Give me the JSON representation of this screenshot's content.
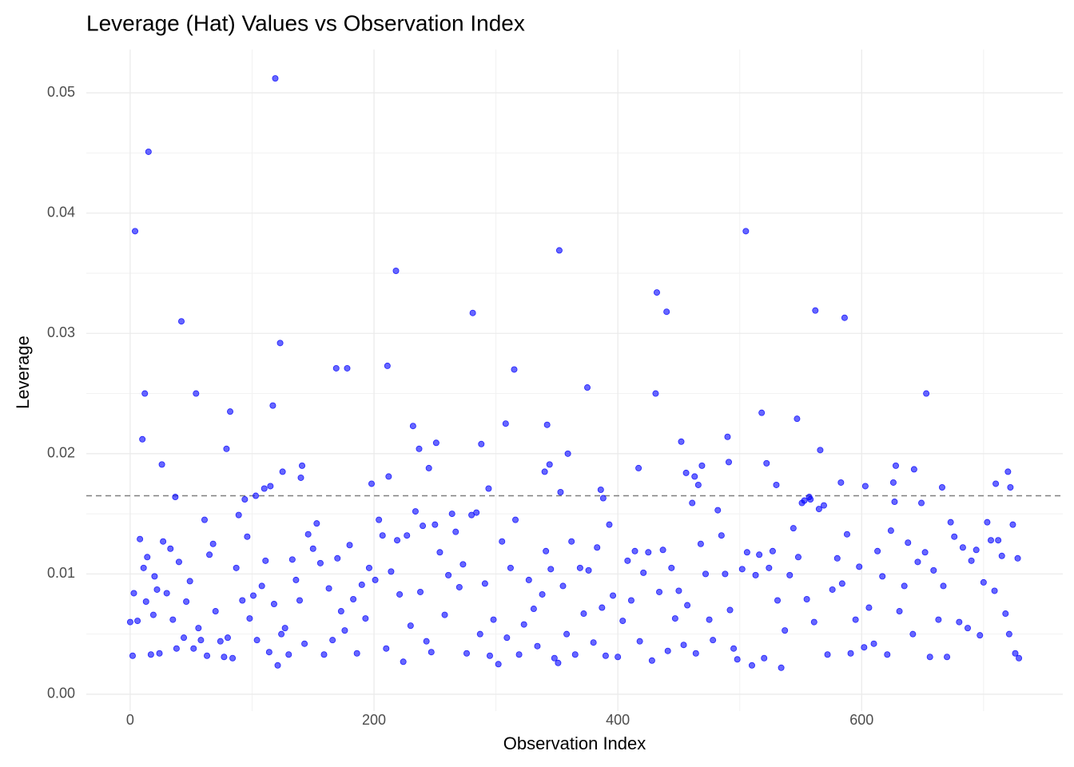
{
  "chart_data": {
    "type": "scatter",
    "title": "Leverage (Hat) Values vs Observation Index",
    "x_label": "Observation Index",
    "y_label": "Leverage",
    "xlim": [
      -36,
      765
    ],
    "ylim": [
      -0.0014,
      0.0536
    ],
    "xticks": [
      0,
      200,
      400,
      600
    ],
    "yticks": [
      {
        "value": 0,
        "label": "0.00"
      },
      0.01,
      0.02,
      0.03,
      0.04,
      0.05
    ],
    "grid": true,
    "color": "#0000ff",
    "hline": 0.0165,
    "x": [
      4,
      15,
      12,
      10,
      26,
      42,
      37,
      54,
      61,
      79,
      82,
      94,
      103,
      110,
      115,
      117,
      119,
      123,
      125,
      140,
      141,
      169,
      178,
      198,
      211,
      212,
      218,
      232,
      237,
      245,
      251,
      281,
      288,
      294,
      308,
      315,
      340,
      342,
      344,
      352,
      353,
      359,
      375,
      386,
      388,
      417,
      431,
      432,
      440,
      452,
      456,
      463,
      466,
      469,
      490,
      491,
      505,
      518,
      522,
      530,
      547,
      553,
      557,
      562,
      566,
      586,
      583,
      603,
      626,
      628,
      643,
      653,
      666,
      710,
      720,
      722,
      0,
      2,
      3,
      6,
      8,
      11,
      13,
      14,
      17,
      19,
      20,
      22,
      24,
      27,
      30,
      33,
      35,
      38,
      40,
      44,
      46,
      49,
      52,
      56,
      58,
      63,
      65,
      68,
      70,
      74,
      77,
      80,
      84,
      87,
      89,
      92,
      96,
      98,
      101,
      104,
      108,
      111,
      114,
      118,
      121,
      124,
      127,
      130,
      133,
      136,
      139,
      143,
      146,
      150,
      153,
      156,
      159,
      163,
      166,
      170,
      173,
      176,
      180,
      183,
      186,
      190,
      193,
      196,
      201,
      204,
      207,
      210,
      214,
      219,
      221,
      224,
      227,
      230,
      234,
      238,
      240,
      243,
      247,
      250,
      254,
      258,
      261,
      264,
      267,
      270,
      273,
      276,
      280,
      284,
      287,
      291,
      295,
      298,
      302,
      305,
      309,
      312,
      316,
      319,
      323,
      327,
      331,
      334,
      338,
      341,
      345,
      348,
      351,
      355,
      358,
      362,
      365,
      369,
      372,
      376,
      380,
      383,
      387,
      390,
      393,
      396,
      400,
      404,
      408,
      411,
      414,
      418,
      421,
      425,
      428,
      434,
      437,
      441,
      444,
      447,
      450,
      454,
      457,
      461,
      464,
      468,
      472,
      475,
      478,
      482,
      485,
      488,
      492,
      495,
      498,
      502,
      506,
      510,
      513,
      516,
      520,
      524,
      527,
      531,
      534,
      537,
      541,
      544,
      548,
      551,
      555,
      558,
      561,
      565,
      569,
      572,
      576,
      580,
      584,
      588,
      591,
      595,
      598,
      602,
      606,
      610,
      613,
      617,
      621,
      624,
      627,
      631,
      635,
      638,
      642,
      646,
      649,
      652,
      656,
      659,
      663,
      667,
      670,
      673,
      676,
      680,
      683,
      687,
      690,
      694,
      697,
      700,
      703,
      706,
      709,
      712,
      715,
      718,
      721,
      724,
      726,
      728,
      729
    ],
    "values": [
      0.0385,
      0.0451,
      0.025,
      0.0212,
      0.0191,
      0.031,
      0.0164,
      0.025,
      0.0145,
      0.0204,
      0.0235,
      0.0162,
      0.0165,
      0.0171,
      0.0173,
      0.024,
      0.0512,
      0.0292,
      0.0185,
      0.018,
      0.019,
      0.0271,
      0.0271,
      0.0175,
      0.0273,
      0.0181,
      0.0352,
      0.0223,
      0.0204,
      0.0188,
      0.0209,
      0.0317,
      0.0208,
      0.0171,
      0.0225,
      0.027,
      0.0185,
      0.0224,
      0.0191,
      0.0369,
      0.0168,
      0.02,
      0.0255,
      0.017,
      0.0163,
      0.0188,
      0.025,
      0.0334,
      0.0318,
      0.021,
      0.0184,
      0.0181,
      0.0174,
      0.019,
      0.0214,
      0.0193,
      0.0385,
      0.0234,
      0.0192,
      0.0174,
      0.0229,
      0.0161,
      0.0164,
      0.0319,
      0.0203,
      0.0313,
      0.0176,
      0.0173,
      0.0176,
      0.019,
      0.0187,
      0.025,
      0.0172,
      0.0175,
      0.0185,
      0.0172,
      0.006,
      0.0032,
      0.0084,
      0.0061,
      0.0129,
      0.0105,
      0.0077,
      0.0114,
      0.0033,
      0.0066,
      0.0098,
      0.0087,
      0.0034,
      0.0127,
      0.0084,
      0.0121,
      0.0062,
      0.0038,
      0.011,
      0.0047,
      0.0077,
      0.0094,
      0.0038,
      0.0055,
      0.0045,
      0.0032,
      0.0116,
      0.0125,
      0.0069,
      0.0044,
      0.0031,
      0.0047,
      0.003,
      0.0105,
      0.0149,
      0.0078,
      0.0131,
      0.0063,
      0.0082,
      0.0045,
      0.009,
      0.0111,
      0.0035,
      0.0075,
      0.0024,
      0.005,
      0.0055,
      0.0033,
      0.0112,
      0.0095,
      0.0078,
      0.0042,
      0.0133,
      0.0121,
      0.0142,
      0.0109,
      0.0033,
      0.0088,
      0.0045,
      0.0113,
      0.0069,
      0.0053,
      0.0124,
      0.0079,
      0.0034,
      0.0091,
      0.0063,
      0.0105,
      0.0095,
      0.0145,
      0.0132,
      0.0038,
      0.0102,
      0.0128,
      0.0083,
      0.0027,
      0.0132,
      0.0057,
      0.0152,
      0.0085,
      0.014,
      0.0044,
      0.0035,
      0.0141,
      0.0118,
      0.0066,
      0.0099,
      0.015,
      0.0135,
      0.0089,
      0.0108,
      0.0034,
      0.0149,
      0.0151,
      0.005,
      0.0092,
      0.0032,
      0.0062,
      0.0025,
      0.0127,
      0.0047,
      0.0105,
      0.0145,
      0.0033,
      0.0058,
      0.0095,
      0.0071,
      0.004,
      0.0083,
      0.0119,
      0.0104,
      0.003,
      0.0026,
      0.009,
      0.005,
      0.0127,
      0.0033,
      0.0105,
      0.0067,
      0.0103,
      0.0043,
      0.0122,
      0.0072,
      0.0032,
      0.0141,
      0.0082,
      0.0031,
      0.0061,
      0.0111,
      0.0078,
      0.0119,
      0.0044,
      0.0101,
      0.0118,
      0.0028,
      0.0085,
      0.012,
      0.0036,
      0.0105,
      0.0063,
      0.0086,
      0.0041,
      0.0074,
      0.0159,
      0.0034,
      0.0125,
      0.01,
      0.0062,
      0.0045,
      0.0153,
      0.0132,
      0.01,
      0.007,
      0.0038,
      0.0029,
      0.0104,
      0.0118,
      0.0024,
      0.0099,
      0.0116,
      0.003,
      0.0105,
      0.0119,
      0.0078,
      0.0022,
      0.0053,
      0.0099,
      0.0138,
      0.0114,
      0.0159,
      0.0079,
      0.0162,
      0.006,
      0.0154,
      0.0157,
      0.0033,
      0.0087,
      0.0113,
      0.0092,
      0.0133,
      0.0034,
      0.0062,
      0.0106,
      0.0039,
      0.0072,
      0.0042,
      0.0119,
      0.0098,
      0.0033,
      0.0136,
      0.016,
      0.0069,
      0.009,
      0.0126,
      0.005,
      0.011,
      0.0159,
      0.0118,
      0.0031,
      0.0103,
      0.0062,
      0.009,
      0.0031,
      0.0143,
      0.0131,
      0.006,
      0.0122,
      0.0055,
      0.0111,
      0.012,
      0.0049,
      0.0093,
      0.0143,
      0.0128,
      0.0086,
      0.0128,
      0.0115,
      0.0067,
      0.005,
      0.0141,
      0.0034,
      0.0113,
      0.003
    ]
  }
}
